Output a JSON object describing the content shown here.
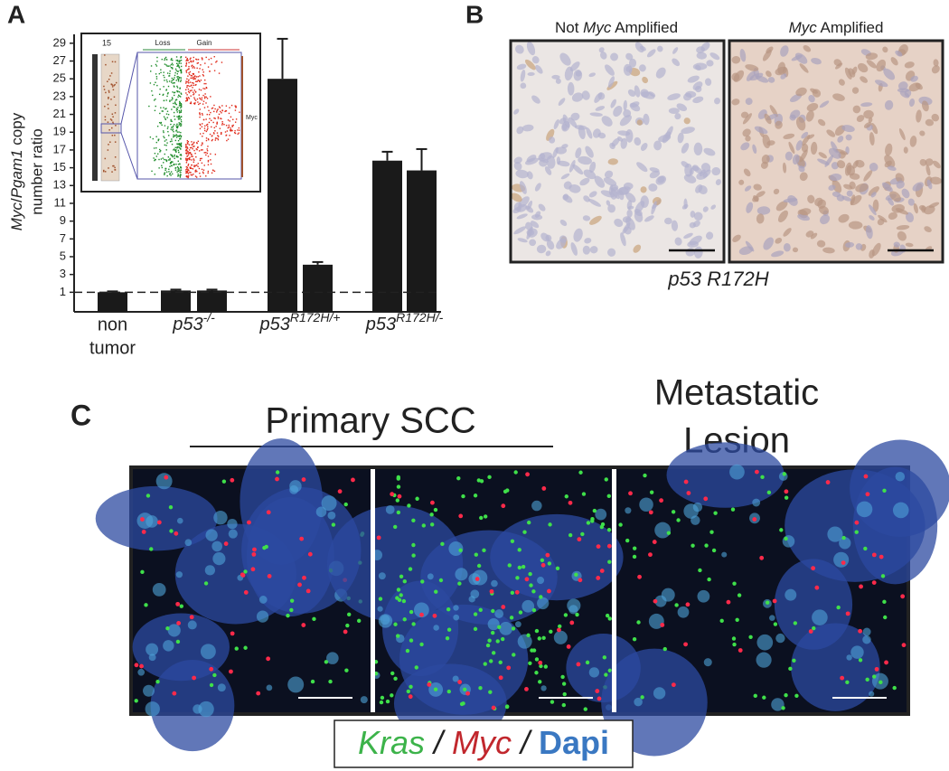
{
  "panel_labels": [
    "A",
    "B",
    "C"
  ],
  "chart_data": {
    "type": "bar",
    "ylabel": {
      "gene1": "Myc",
      "sep": "/",
      "gene2": "Pgam1",
      "line1": " copy",
      "line2": "number ratio"
    },
    "groups": [
      {
        "name": "non",
        "name2": "tumor",
        "values": [
          1
        ],
        "errors": [
          0.1
        ]
      },
      {
        "name": "p53",
        "sup": "-/-",
        "values": [
          1.2,
          1.2
        ],
        "errors": [
          0.1,
          0.1
        ]
      },
      {
        "name": "p53",
        "sup": "R172H/+",
        "values": [
          25,
          4.1
        ],
        "errors": [
          4.5,
          0.3
        ]
      },
      {
        "name": "p53",
        "sup": "R172H/-",
        "values": [
          15.8,
          14.7
        ],
        "errors": [
          1.0,
          2.4
        ]
      }
    ],
    "color": "#1a1a1a",
    "reference_line": 1,
    "ylim": [
      -1.2,
      30
    ],
    "yticks": [
      1,
      3,
      5,
      7,
      9,
      11,
      13,
      15,
      17,
      19,
      21,
      23,
      25,
      27,
      29
    ],
    "inset": {
      "chromosome": "15",
      "loss": "Loss",
      "gain": "Gain",
      "gene": "Myc"
    }
  },
  "panel_b": {
    "images": [
      {
        "pre": "Not ",
        "gene": "Myc",
        "post": " Amplified"
      },
      {
        "pre": "",
        "gene": "Myc",
        "post": " Amplified"
      }
    ],
    "caption": "p53 R172H"
  },
  "panel_c": {
    "primary": "Primary SCC",
    "metastatic_line1": "Metastatic",
    "metastatic_line2": "Lesion",
    "legend": {
      "kras": "Kras",
      "sep1": " / ",
      "myc": "Myc",
      "sep2": " / ",
      "dapi": "Dapi"
    }
  }
}
